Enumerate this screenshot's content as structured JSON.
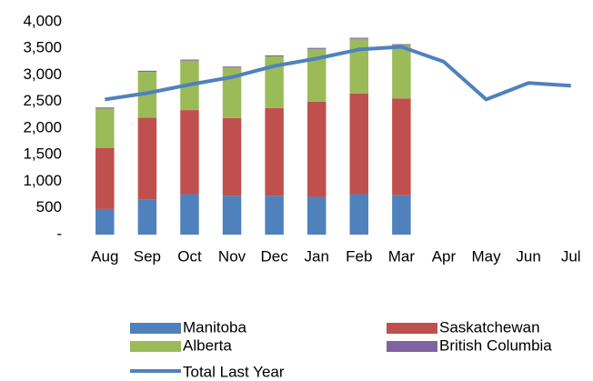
{
  "chart_data": {
    "type": "stacked_bar_line",
    "categories": [
      "Aug",
      "Sep",
      "Oct",
      "Nov",
      "Dec",
      "Jan",
      "Feb",
      "Mar",
      "Apr",
      "May",
      "Jun",
      "Jul"
    ],
    "series": [
      {
        "name": "Manitoba",
        "color": "#4f81bd",
        "values": [
          480,
          665,
          760,
          730,
          730,
          710,
          760,
          740,
          null,
          null,
          null,
          null
        ]
      },
      {
        "name": "Saskatchewan",
        "color": "#c0504d",
        "values": [
          1150,
          1535,
          1580,
          1460,
          1650,
          1790,
          1890,
          1820,
          null,
          null,
          null,
          null
        ]
      },
      {
        "name": "Alberta",
        "color": "#9bbb59",
        "values": [
          740,
          860,
          930,
          950,
          970,
          990,
          1030,
          1000,
          null,
          null,
          null,
          null
        ]
      },
      {
        "name": "British Columbia",
        "color": "#8064a2",
        "values": [
          20,
          20,
          20,
          20,
          20,
          20,
          20,
          20,
          null,
          null,
          null,
          null
        ]
      }
    ],
    "line_series": {
      "name": "Total Last Year",
      "color": "#4f81bd",
      "values": [
        2540,
        2660,
        2820,
        2960,
        3170,
        3310,
        3480,
        3530,
        3250,
        2540,
        2850,
        2800
      ]
    },
    "ylim": [
      0,
      4000
    ],
    "yticks": [
      {
        "value": 0,
        "label": "-"
      },
      500,
      {
        "value": 1000,
        "label": "1,000"
      },
      {
        "value": 1500,
        "label": "1,500"
      },
      {
        "value": 2000,
        "label": "2,000"
      },
      {
        "value": 2500,
        "label": "2,500"
      },
      {
        "value": 3000,
        "label": "3,000"
      },
      {
        "value": 3500,
        "label": "3,500"
      },
      {
        "value": 4000,
        "label": "4,000"
      }
    ],
    "grid": false,
    "legend": "bottom"
  }
}
